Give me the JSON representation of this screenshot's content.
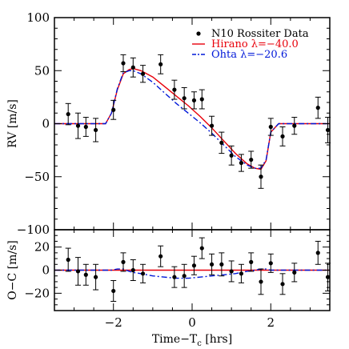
{
  "chart_data": [
    {
      "type": "scatter",
      "panel": "top",
      "xlabel": "",
      "ylabel": "RV [m/s]",
      "xlim": [
        -3.5,
        3.5
      ],
      "ylim": [
        -100,
        100
      ],
      "y_ticks": [
        100,
        50,
        0,
        -50,
        -100
      ],
      "y_tick_labels": [
        "100",
        "50",
        "0",
        "−50",
        "−100"
      ],
      "legend_position": "top-right",
      "legend": [
        {
          "label": "N10 Rossiter Data",
          "marker": "dot",
          "color": "#000000"
        },
        {
          "label": "Hirano λ=−40.0",
          "marker": "solid-line",
          "color": "#e8000b"
        },
        {
          "label": "Ohta λ=−20.6",
          "marker": "dash-dot-line",
          "color": "#0018d8"
        }
      ],
      "series": [
        {
          "name": "N10 Rossiter Data",
          "style": "errorbar",
          "color": "#000000",
          "points": [
            {
              "x": -3.15,
              "y": 9,
              "err": 10
            },
            {
              "x": -2.9,
              "y": -2,
              "err": 12
            },
            {
              "x": -2.7,
              "y": -3,
              "err": 9
            },
            {
              "x": -2.45,
              "y": -6,
              "err": 11
            },
            {
              "x": -2.0,
              "y": 13,
              "err": 9
            },
            {
              "x": -1.75,
              "y": 57,
              "err": 8
            },
            {
              "x": -1.5,
              "y": 53,
              "err": 9
            },
            {
              "x": -1.25,
              "y": 47,
              "err": 8
            },
            {
              "x": -0.8,
              "y": 56,
              "err": 9
            },
            {
              "x": -0.45,
              "y": 32,
              "err": 9
            },
            {
              "x": -0.2,
              "y": 24,
              "err": 10
            },
            {
              "x": 0.05,
              "y": 22,
              "err": 8
            },
            {
              "x": 0.25,
              "y": 23,
              "err": 9
            },
            {
              "x": 0.5,
              "y": -2,
              "err": 9
            },
            {
              "x": 0.75,
              "y": -18,
              "err": 10
            },
            {
              "x": 1.0,
              "y": -30,
              "err": 9
            },
            {
              "x": 1.25,
              "y": -37,
              "err": 8
            },
            {
              "x": 1.5,
              "y": -34,
              "err": 8
            },
            {
              "x": 1.75,
              "y": -50,
              "err": 11
            },
            {
              "x": 2.0,
              "y": -3,
              "err": 8
            },
            {
              "x": 2.3,
              "y": -12,
              "err": 9
            },
            {
              "x": 2.6,
              "y": -2,
              "err": 8
            },
            {
              "x": 3.2,
              "y": 15,
              "err": 10
            },
            {
              "x": 3.45,
              "y": -6,
              "err": 12
            }
          ]
        },
        {
          "name": "Hirano λ=−40.0",
          "style": "line",
          "color": "#e8000b",
          "x": [
            -3.5,
            -2.2,
            -2.05,
            -1.9,
            -1.75,
            -1.6,
            -1.5,
            -1.3,
            -1.0,
            -0.7,
            -0.4,
            -0.1,
            0.2,
            0.5,
            0.8,
            1.1,
            1.4,
            1.6,
            1.75,
            1.88,
            2.0,
            2.2,
            3.5
          ],
          "y": [
            0,
            0,
            10,
            32,
            47,
            51,
            52,
            50,
            44,
            35,
            26,
            17,
            7,
            -4,
            -16,
            -28,
            -38,
            -42,
            -43,
            -35,
            -8,
            0,
            0
          ]
        },
        {
          "name": "Ohta λ=−20.6",
          "style": "dash-dot",
          "color": "#0018d8",
          "x": [
            -3.5,
            -2.2,
            -2.05,
            -1.9,
            -1.75,
            -1.6,
            -1.5,
            -1.3,
            -1.0,
            -0.7,
            -0.4,
            -0.1,
            0.2,
            0.5,
            0.8,
            1.1,
            1.4,
            1.6,
            1.75,
            1.88,
            2.0,
            2.2,
            3.5
          ],
          "y": [
            0,
            0,
            10,
            33,
            48,
            50,
            50,
            47,
            39,
            29,
            19,
            10,
            1,
            -9,
            -20,
            -31,
            -39,
            -42,
            -42,
            -34,
            -8,
            0,
            0
          ]
        }
      ]
    },
    {
      "type": "scatter",
      "panel": "bottom",
      "xlabel": "Time−T",
      "xlabel_sub": "c",
      "xlabel_unit": " [hrs]",
      "ylabel": "O−C [m/s]",
      "xlim": [
        -3.5,
        3.5
      ],
      "ylim": [
        -35,
        35
      ],
      "x_ticks": [
        -2,
        0,
        2
      ],
      "x_tick_labels": [
        "−2",
        "0",
        "2"
      ],
      "y_ticks": [
        20,
        0,
        -20
      ],
      "y_tick_labels": [
        "20",
        "0",
        "−20"
      ],
      "series": [
        {
          "name": "N10 Rossiter Data",
          "style": "errorbar",
          "color": "#000000",
          "points": [
            {
              "x": -3.15,
              "y": 9,
              "err": 10
            },
            {
              "x": -2.9,
              "y": -1,
              "err": 12
            },
            {
              "x": -2.7,
              "y": -4,
              "err": 9
            },
            {
              "x": -2.45,
              "y": -6,
              "err": 11
            },
            {
              "x": -2.0,
              "y": -18,
              "err": 9
            },
            {
              "x": -1.75,
              "y": 7,
              "err": 8
            },
            {
              "x": -1.5,
              "y": 0,
              "err": 9
            },
            {
              "x": -1.25,
              "y": -3,
              "err": 8
            },
            {
              "x": -0.8,
              "y": 12,
              "err": 9
            },
            {
              "x": -0.45,
              "y": -6,
              "err": 9
            },
            {
              "x": -0.2,
              "y": -5,
              "err": 10
            },
            {
              "x": 0.05,
              "y": 4,
              "err": 8
            },
            {
              "x": 0.25,
              "y": 19,
              "err": 9
            },
            {
              "x": 0.5,
              "y": 5,
              "err": 9
            },
            {
              "x": 0.75,
              "y": 5,
              "err": 10
            },
            {
              "x": 1.0,
              "y": -1,
              "err": 9
            },
            {
              "x": 1.25,
              "y": -3,
              "err": 8
            },
            {
              "x": 1.5,
              "y": 7,
              "err": 8
            },
            {
              "x": 1.75,
              "y": -10,
              "err": 11
            },
            {
              "x": 2.0,
              "y": 6,
              "err": 8
            },
            {
              "x": 2.3,
              "y": -12,
              "err": 9
            },
            {
              "x": 2.6,
              "y": -2,
              "err": 8
            },
            {
              "x": 3.2,
              "y": 15,
              "err": 10
            },
            {
              "x": 3.45,
              "y": -6,
              "err": 12
            }
          ]
        },
        {
          "name": "Hirano λ=−40.0",
          "style": "line",
          "color": "#e8000b",
          "x": [
            -3.5,
            3.5
          ],
          "y": [
            0,
            0
          ]
        },
        {
          "name": "Ohta λ=−20.6",
          "style": "dash-dot",
          "color": "#0018d8",
          "x": [
            -3.5,
            -2.2,
            -2.05,
            -1.9,
            -1.75,
            -1.6,
            -1.5,
            -1.3,
            -1.0,
            -0.7,
            -0.4,
            -0.1,
            0.2,
            0.5,
            0.8,
            1.1,
            1.4,
            1.6,
            1.75,
            1.88,
            2.0,
            2.2,
            3.5
          ],
          "y": [
            0,
            0,
            0,
            1,
            1,
            -1,
            -2,
            -3,
            -5,
            -6,
            -7,
            -7,
            -6,
            -5,
            -4,
            -3,
            -1,
            0,
            1,
            1,
            0,
            0,
            0
          ]
        }
      ]
    }
  ]
}
